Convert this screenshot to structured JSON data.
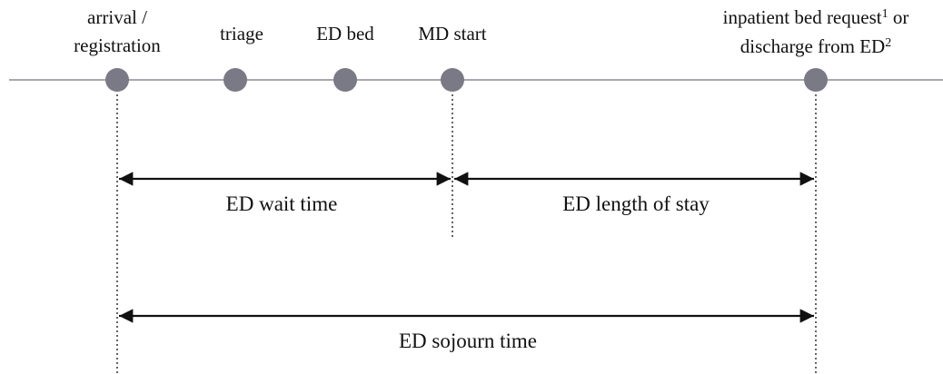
{
  "nodes": [
    {
      "lines": [
        "arrival /",
        "registration"
      ]
    },
    {
      "lines": [
        "triage"
      ]
    },
    {
      "lines": [
        "ED bed"
      ]
    },
    {
      "lines": [
        "MD start"
      ]
    },
    {
      "lines": [
        {
          "text": "inpatient bed request",
          "sup": "1",
          "tail": " or"
        },
        {
          "text": "discharge from ED",
          "sup": "2"
        }
      ]
    }
  ],
  "spans": [
    {
      "label": "ED wait time"
    },
    {
      "label": "ED length of stay"
    },
    {
      "label": "ED sojourn time"
    }
  ]
}
